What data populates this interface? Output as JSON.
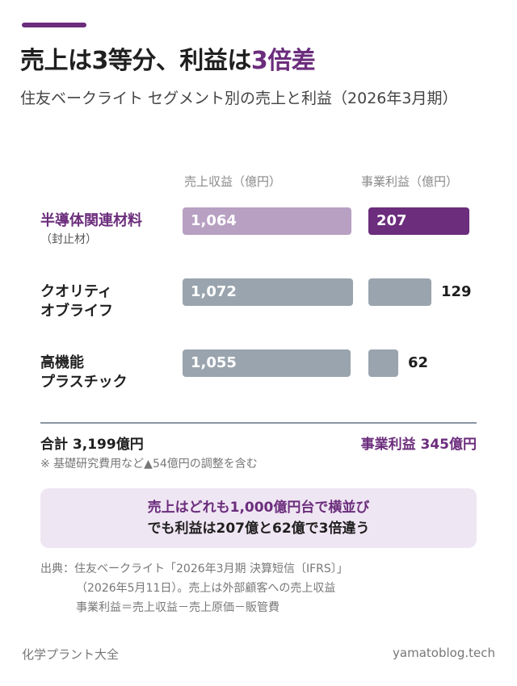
{
  "header": {
    "title_main": "売上は3等分、利益は",
    "title_highlight": "3倍差",
    "subtitle": "住友ベークライト セグメント別の売上と利益（2026年3月期）"
  },
  "colors": {
    "accent": "#6b2d7c",
    "accent_light": "#b7a0c2",
    "neutral_bar": "#9aa4ae",
    "callout_bg": "#efe6f3"
  },
  "chart_data": {
    "type": "bar",
    "orientation": "horizontal",
    "headers": [
      "売上収益（億円）",
      "事業利益（億円）"
    ],
    "categories": [
      {
        "name": "半導体関連材料",
        "sub": "（封止材）",
        "highlight": true
      },
      {
        "name": "クオリティ\nオブライフ",
        "sub": "",
        "highlight": false
      },
      {
        "name": "高機能\nプラスチック",
        "sub": "",
        "highlight": false
      }
    ],
    "series": [
      {
        "name": "売上収益（億円）",
        "values": [
          1064,
          1072,
          1055
        ],
        "labels": [
          "1,064",
          "1,072",
          "1,055"
        ]
      },
      {
        "name": "事業利益（億円）",
        "values": [
          207,
          129,
          62
        ],
        "labels": [
          "207",
          "129",
          "62"
        ]
      }
    ]
  },
  "totals": {
    "sales": "合計 3,199億円",
    "op_profit": "事業利益 345億円",
    "note": "※ 基礎研究費用など▲54億円の調整を含む"
  },
  "callout": {
    "line1": "売上はどれも1,000億円台で横並び",
    "line2": "でも利益は207億と62億で3倍違う"
  },
  "source": {
    "line1": "出典：住友ベークライト「2026年3月期 決算短信〔IFRS〕」",
    "line2": "（2026年5月11日）。売上は外部顧客への売上収益",
    "line3": "事業利益＝売上収益－売上原価－販管費"
  },
  "footer": {
    "left": "化学プラント大全",
    "right": "yamatoblog.tech"
  }
}
